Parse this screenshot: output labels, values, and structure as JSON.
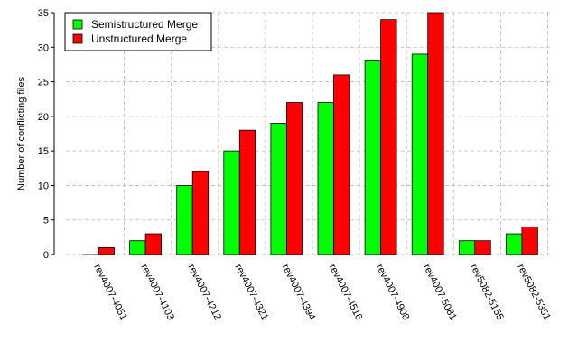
{
  "chart_data": {
    "type": "bar",
    "title": "",
    "xlabel": "",
    "ylabel": "Number of conflicting files",
    "ylim": [
      0,
      35
    ],
    "yticks": [
      0,
      5,
      10,
      15,
      20,
      25,
      30,
      35
    ],
    "grid": true,
    "legend_position": "top-left",
    "categories": [
      "rev4007-4051",
      "rev4007-4103",
      "rev4007-4212",
      "rev4007-4321",
      "rev4007-4394",
      "rev4007-4516",
      "rev4007-4908",
      "rev4007-5081",
      "rev5082-5155",
      "rev5082-5351"
    ],
    "series": [
      {
        "name": "Semistructured Merge",
        "color": "#00ff00",
        "values": [
          0,
          2,
          10,
          15,
          19,
          22,
          28,
          29,
          2,
          3
        ]
      },
      {
        "name": "Unstructured Merge",
        "color": "#ff0000",
        "values": [
          1,
          3,
          12,
          18,
          22,
          26,
          34,
          35,
          2,
          4
        ]
      }
    ]
  }
}
